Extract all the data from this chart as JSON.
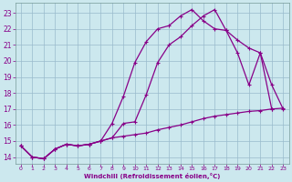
{
  "xlabel": "Windchill (Refroidissement éolien,°C)",
  "background_color": "#cce8ee",
  "line_color": "#880088",
  "grid_color": "#99bbcc",
  "x_ticks": [
    0,
    1,
    2,
    3,
    4,
    5,
    6,
    7,
    8,
    9,
    10,
    11,
    12,
    13,
    14,
    15,
    16,
    17,
    18,
    19,
    20,
    21,
    22,
    23
  ],
  "y_ticks": [
    14,
    15,
    16,
    17,
    18,
    19,
    20,
    21,
    22,
    23
  ],
  "ylim": [
    13.6,
    23.6
  ],
  "xlim": [
    -0.5,
    23.5
  ],
  "line1_x": [
    0,
    1,
    2,
    3,
    4,
    5,
    6,
    7,
    8,
    9,
    10,
    11,
    12,
    13,
    14,
    15,
    16,
    17,
    18,
    19,
    20,
    21,
    22
  ],
  "line1_y": [
    14.7,
    14.0,
    13.9,
    14.5,
    14.8,
    14.7,
    14.8,
    15.0,
    16.1,
    17.8,
    19.9,
    21.2,
    22.0,
    22.2,
    22.8,
    23.2,
    22.5,
    22.0,
    21.9,
    20.5,
    18.5,
    20.5,
    17.0
  ],
  "line2_x": [
    0,
    1,
    2,
    3,
    4,
    5,
    6,
    7,
    8,
    9,
    10,
    11,
    12,
    13,
    14,
    15,
    16,
    17,
    18,
    19,
    20,
    21,
    22,
    23
  ],
  "line2_y": [
    14.7,
    14.0,
    13.9,
    14.5,
    14.8,
    14.7,
    14.8,
    15.0,
    15.2,
    16.1,
    16.2,
    17.9,
    19.9,
    21.0,
    21.5,
    22.2,
    22.8,
    23.2,
    21.9,
    21.3,
    20.8,
    20.5,
    18.5,
    17.0
  ],
  "line3_x": [
    0,
    1,
    2,
    3,
    4,
    5,
    6,
    7,
    8,
    9,
    10,
    11,
    12,
    13,
    14,
    15,
    16,
    17,
    18,
    19,
    20,
    21,
    22,
    23
  ],
  "line3_y": [
    14.7,
    14.0,
    13.9,
    14.5,
    14.8,
    14.7,
    14.8,
    15.0,
    15.2,
    15.3,
    15.4,
    15.5,
    15.7,
    15.85,
    16.0,
    16.2,
    16.4,
    16.55,
    16.65,
    16.75,
    16.85,
    16.9,
    17.0,
    17.05
  ]
}
